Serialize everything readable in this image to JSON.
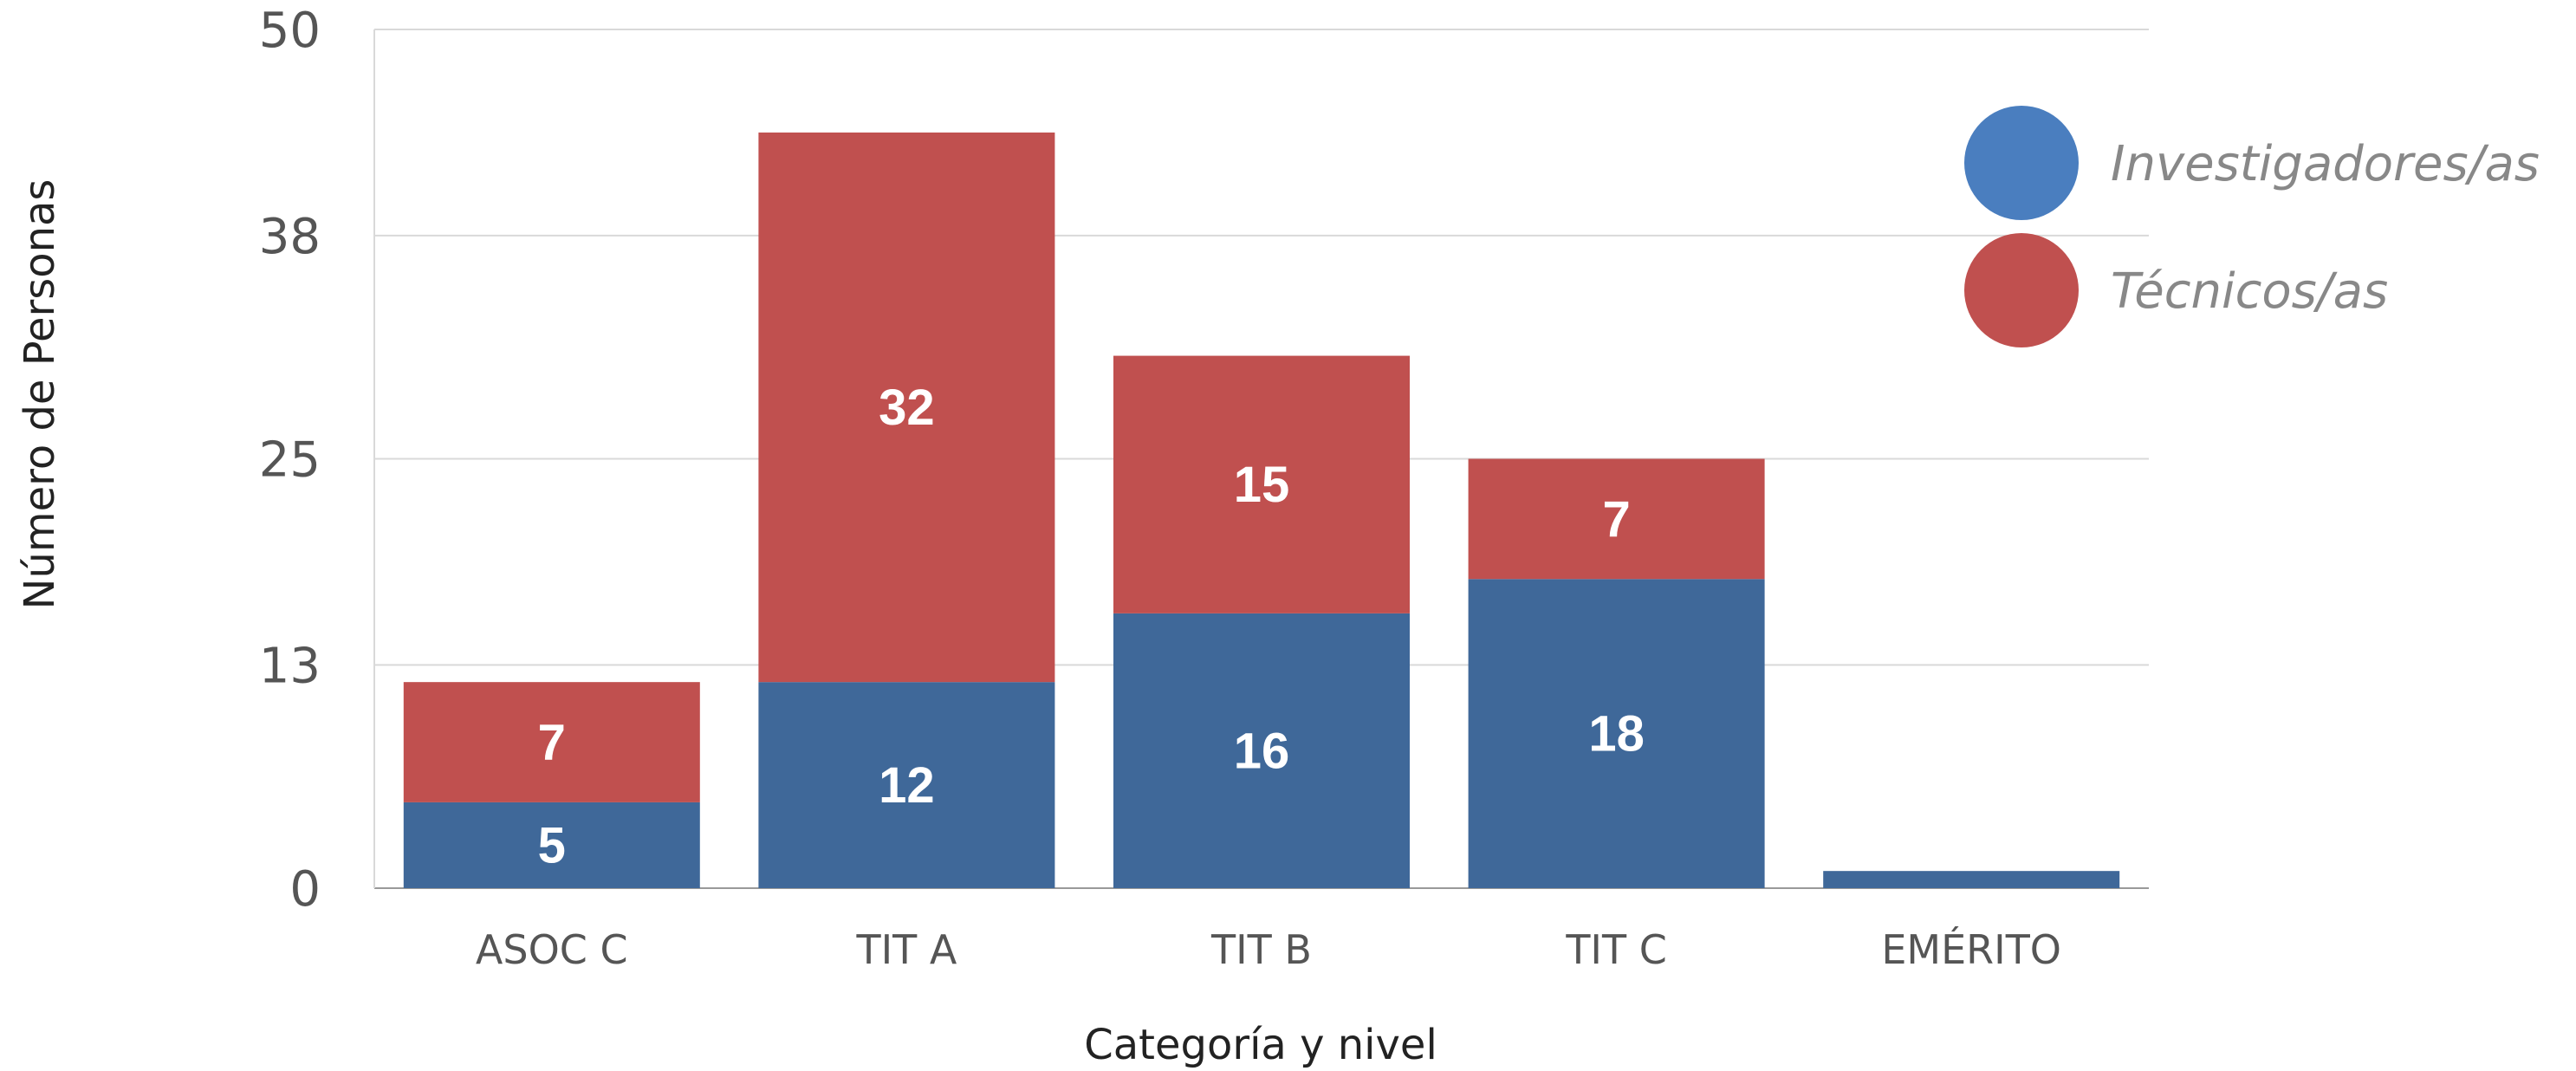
{
  "chart_data": {
    "type": "bar",
    "stacked": true,
    "title": "",
    "xlabel": "Categoría y nivel",
    "ylabel": "Número de Personas",
    "ylim": [
      0,
      50
    ],
    "yticks": [
      "0",
      "13",
      "25",
      "38",
      "50"
    ],
    "categories": [
      "ASOC C",
      "TIT A",
      "TIT B",
      "TIT C",
      "EMÉRITO"
    ],
    "series": [
      {
        "name": "Investigadores/as",
        "color": "#3f6899",
        "values": [
          5,
          12,
          16,
          18,
          1
        ],
        "labels": [
          "5",
          "12",
          "16",
          "18",
          ""
        ]
      },
      {
        "name": "Técnicos/as",
        "color": "#c0504f",
        "values": [
          7,
          32,
          15,
          7,
          0
        ],
        "labels": [
          "7",
          "32",
          "15",
          "7",
          ""
        ]
      }
    ],
    "legend": {
      "position": "top-right",
      "items": [
        {
          "label": "Investigadores/as",
          "color": "#4a7ebf"
        },
        {
          "label": "Técnicos/as",
          "color": "#c0504f"
        }
      ]
    },
    "grid": true
  }
}
